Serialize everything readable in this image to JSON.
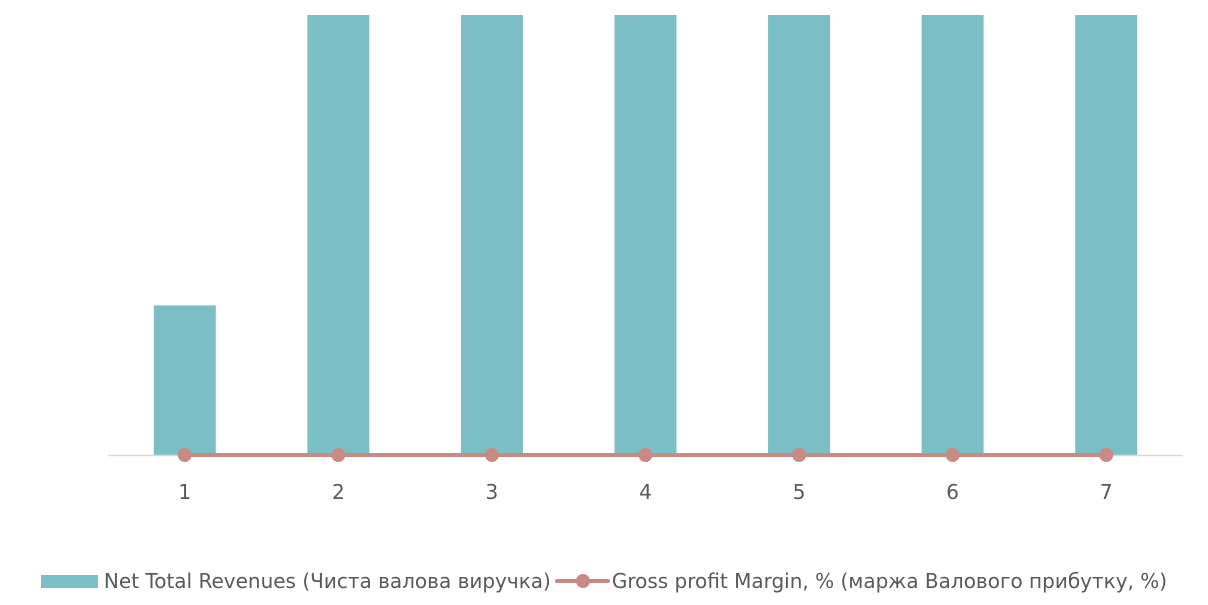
{
  "chart_data": {
    "type": "bar",
    "categories": [
      "1",
      "2",
      "3",
      "4",
      "5",
      "6",
      "7"
    ],
    "series": [
      {
        "name": "Net Total Revenues (Чиста валова виручка)",
        "type": "bar",
        "color": "#7bbec6",
        "values": [
          3.4,
          10,
          10,
          10,
          10,
          10,
          10
        ]
      },
      {
        "name": "Gross profit Margin, % (маржа Валового прибутку, %)",
        "type": "line",
        "color": "#c98a83",
        "values": [
          0,
          0,
          0,
          0,
          0,
          0,
          0
        ]
      }
    ],
    "ylim": [
      0,
      10
    ],
    "bars_clipped_at_top": true,
    "grid": false,
    "legend_position": "bottom",
    "axis_color": "#d9d9d9",
    "tick_label_color": "#595959"
  },
  "legend": {
    "bar_label": "Net Total Revenues (Чиста валова виручка)",
    "line_label": "Gross profit Margin, % (маржа Валового прибутку, %)"
  }
}
